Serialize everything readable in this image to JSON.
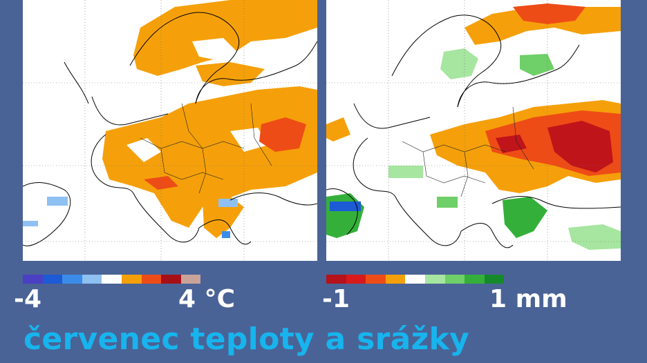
{
  "maps": [
    {
      "name": "temperature-anomaly-map",
      "legend": {
        "min_label": "-4",
        "max_label": "4 °C",
        "colors": [
          "#4b3fc4",
          "#1c5ad6",
          "#3b8ce8",
          "#8ec0f2",
          "#ffffff",
          "#f5a00a",
          "#ee4c16",
          "#a70f17",
          "#c9a39a"
        ]
      },
      "fill_colors": {
        "primary": "#f5a00a",
        "strong": "#ee4c16",
        "cool": "#8ec0f2",
        "cool_strong": "#3b8ce8"
      }
    },
    {
      "name": "precipitation-anomaly-map",
      "legend": {
        "min_label": "-1",
        "max_label": "1 mm",
        "colors": [
          "#b5121b",
          "#d7191c",
          "#ee4c16",
          "#f5a00a",
          "#ffffff",
          "#a6e6a0",
          "#6fcf68",
          "#34b03a",
          "#168a2a"
        ]
      },
      "fill_colors": {
        "dry": "#f5a00a",
        "dry_strong": "#ee4c16",
        "dry_extreme": "#c0141b",
        "wet": "#a6e6a0",
        "wet_mid": "#6fcf68",
        "wet_strong": "#168a2a",
        "blue": "#1c5ad6"
      }
    }
  ],
  "caption": "červenec teploty a srážky"
}
